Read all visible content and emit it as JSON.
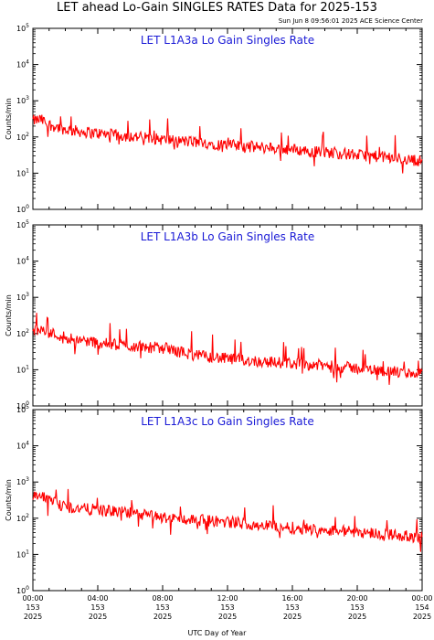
{
  "title": "LET ahead Lo-Gain SINGLES RATES Data for 2025-153",
  "timestamp": "Sun Jun  8 09:56:01 2025 ACE Science Center",
  "xlabel": "UTC Day of Year",
  "colors": {
    "series": "#ff0000",
    "panel_title": "#1a1ad6"
  },
  "chart_data": [
    {
      "type": "line",
      "title": "LET L1A3a Lo Gain Singles Rate",
      "ylabel": "Counts/min",
      "yscale": "log",
      "ylim": [
        1,
        100000
      ],
      "ytick_labels": [
        "10^0",
        "10^1",
        "10^2",
        "10^3",
        "10^4",
        "10^5"
      ],
      "xlim": [
        0,
        24
      ],
      "x_hours": [
        0,
        0.5,
        1,
        2,
        3,
        4,
        6,
        8,
        10,
        12,
        14,
        16,
        18,
        20,
        22,
        23,
        24
      ],
      "values": [
        280,
        300,
        220,
        160,
        140,
        125,
        105,
        85,
        72,
        60,
        52,
        45,
        38,
        32,
        27,
        24,
        22
      ]
    },
    {
      "type": "line",
      "title": "LET L1A3b Lo Gain Singles Rate",
      "ylabel": "Counts/min",
      "yscale": "log",
      "ylim": [
        1,
        100000
      ],
      "ytick_labels": [
        "10^0",
        "10^1",
        "10^2",
        "10^3",
        "10^4",
        "10^5"
      ],
      "xlim": [
        0,
        24
      ],
      "x_hours": [
        0,
        0.5,
        1,
        2,
        4,
        6,
        8,
        10,
        12,
        14,
        16,
        18,
        20,
        22,
        23,
        24
      ],
      "values": [
        120,
        130,
        105,
        80,
        55,
        45,
        40,
        25,
        20,
        17,
        15,
        13,
        11,
        9,
        8,
        8
      ]
    },
    {
      "type": "line",
      "title": "LET L1A3c Lo Gain Singles Rate",
      "ylabel": "Counts/min",
      "yscale": "log",
      "ylim": [
        1,
        100000
      ],
      "ytick_labels": [
        "10^0",
        "10^1",
        "10^2",
        "10^3",
        "10^4",
        "10^5"
      ],
      "xlim": [
        0,
        24
      ],
      "x_hours": [
        0,
        0.5,
        1,
        2,
        4,
        6,
        8,
        10,
        12,
        14,
        16,
        18,
        20,
        22,
        23,
        24
      ],
      "values": [
        380,
        400,
        300,
        200,
        170,
        140,
        105,
        90,
        80,
        65,
        55,
        48,
        42,
        36,
        32,
        30
      ]
    }
  ],
  "x_ticks": [
    {
      "time": "00:00",
      "doy": "153",
      "year": "2025"
    },
    {
      "time": "04:00",
      "doy": "153",
      "year": "2025"
    },
    {
      "time": "08:00",
      "doy": "153",
      "year": "2025"
    },
    {
      "time": "12:00",
      "doy": "153",
      "year": "2025"
    },
    {
      "time": "16:00",
      "doy": "153",
      "year": "2025"
    },
    {
      "time": "20:00",
      "doy": "153",
      "year": "2025"
    },
    {
      "time": "00:00",
      "doy": "154",
      "year": "2025"
    }
  ]
}
